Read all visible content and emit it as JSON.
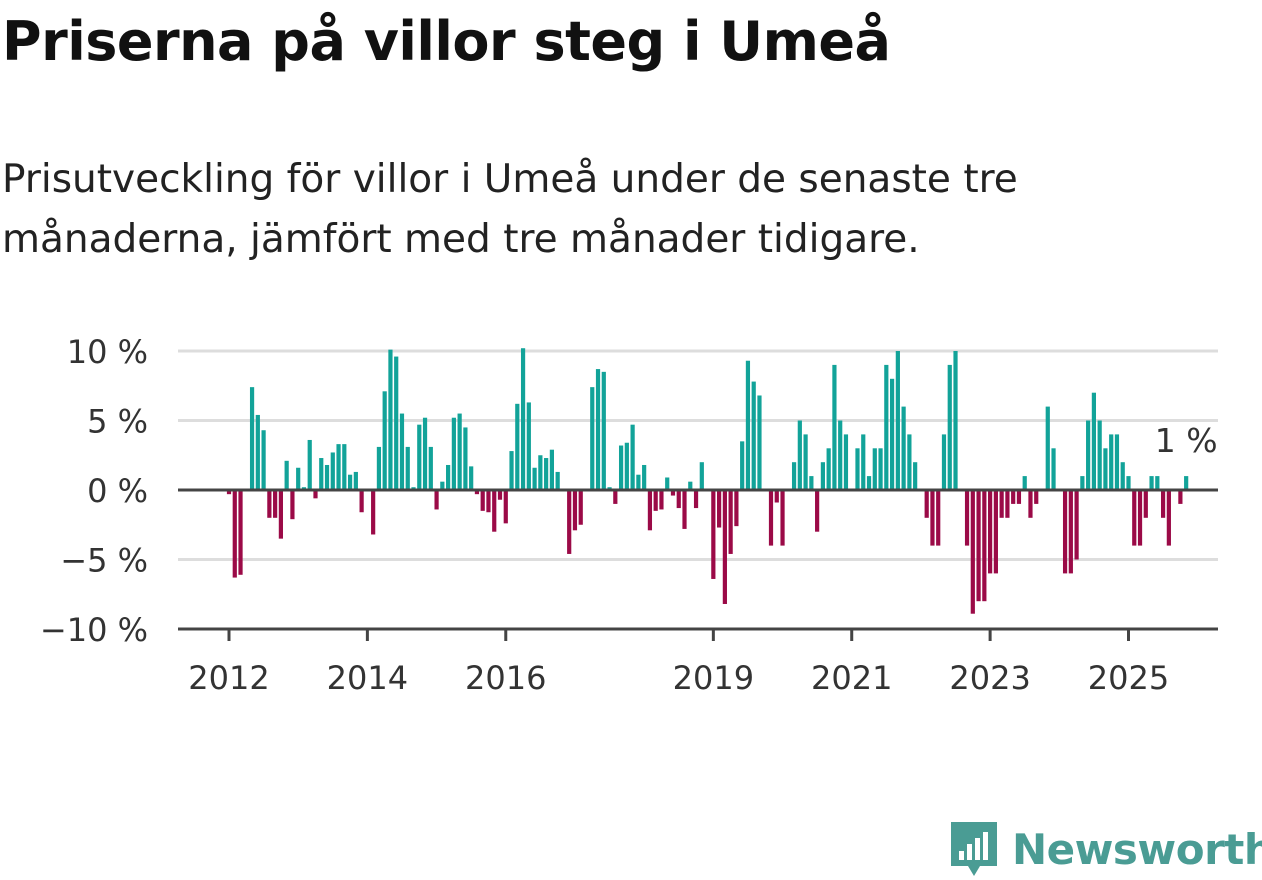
{
  "title": "Priserna på villor steg i Umeå",
  "subtitle": "Prisutveckling för villor i Umeå under de senaste tre månaderna, jämfört med tre månader tidigare.",
  "brand": {
    "name": "Newsworthy"
  },
  "colors": {
    "positive": "#12a399",
    "negative": "#9b0a47",
    "grid": "#dddddd",
    "axis": "#444444"
  },
  "chart_data": {
    "type": "bar",
    "start_month": "2012-01",
    "x_ticks": [
      {
        "year": 2012,
        "label": "2012"
      },
      {
        "year": 2014,
        "label": "2014"
      },
      {
        "year": 2016,
        "label": "2016"
      },
      {
        "year": 2019,
        "label": "2019"
      },
      {
        "year": 2021,
        "label": "2021"
      },
      {
        "year": 2023,
        "label": "2023"
      },
      {
        "year": 2025,
        "label": "2025"
      }
    ],
    "y_ticks": [
      {
        "value": 10,
        "label": "10 %"
      },
      {
        "value": 5,
        "label": "5 %"
      },
      {
        "value": 0,
        "label": "0 %"
      },
      {
        "value": -5,
        "label": "−5 %"
      },
      {
        "value": -10,
        "label": "−10 %"
      }
    ],
    "ylim": [
      -10,
      10
    ],
    "annotation": {
      "label": "1 %",
      "value": 1
    },
    "values": [
      -0.3,
      -6.3,
      -6.1,
      0,
      7.4,
      5.4,
      4.3,
      -2,
      -2,
      -3.5,
      2.1,
      -2.1,
      1.6,
      0.2,
      3.6,
      -0.6,
      2.3,
      1.8,
      2.7,
      3.3,
      3.3,
      1.1,
      1.3,
      -1.6,
      0,
      -3.2,
      3.1,
      7.1,
      10.1,
      9.6,
      5.5,
      3.1,
      0.2,
      4.7,
      5.2,
      3.1,
      -1.4,
      0.6,
      1.8,
      5.2,
      5.5,
      4.5,
      1.7,
      -0.3,
      -1.5,
      -1.6,
      -3,
      -0.7,
      -2.4,
      2.8,
      6.2,
      10.2,
      6.3,
      1.6,
      2.5,
      2.3,
      2.9,
      1.3,
      0,
      -4.6,
      -2.9,
      -2.5,
      0,
      7.4,
      8.7,
      8.5,
      0.2,
      -1,
      3.2,
      3.4,
      4.7,
      1.1,
      1.8,
      -2.9,
      -1.5,
      -1.4,
      0.9,
      -0.4,
      -1.3,
      -2.8,
      0.6,
      -1.3,
      2,
      0,
      -6.4,
      -2.7,
      -8.2,
      -4.6,
      -2.6,
      3.5,
      9.3,
      7.8,
      6.8,
      0,
      -4,
      -0.9,
      -4,
      0,
      2,
      5,
      4,
      1,
      -3,
      2,
      3,
      9,
      5,
      4,
      0,
      3,
      4,
      1,
      3,
      3,
      9,
      8,
      10,
      6,
      4,
      2,
      0,
      -2,
      -4,
      -4,
      4,
      9,
      10,
      0,
      -4,
      -8.9,
      -8,
      -8,
      -6,
      -6,
      -2,
      -2,
      -1,
      -1,
      1,
      -2,
      -1,
      0,
      6,
      3,
      0,
      -6,
      -6,
      -5,
      1,
      5,
      7,
      5,
      3,
      4,
      4,
      2,
      1,
      -4,
      -4,
      -2,
      1,
      1,
      -2,
      -4,
      0,
      -1,
      1
    ]
  }
}
